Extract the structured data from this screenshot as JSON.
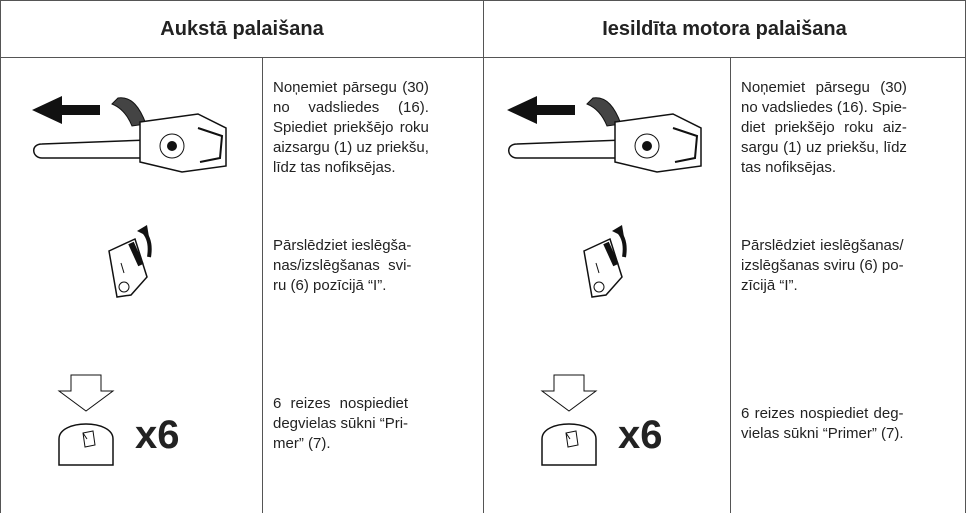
{
  "tables": [
    {
      "header": "Aukstā palaišana",
      "rows": [
        {
          "lines": [
            "Noņemiet pārsegu (30)",
            "no vadsliedes (16).",
            "Spiediet priekšējo roku",
            "aizsargu (1) uz priekšu,",
            "līdz tas nofiksējas."
          ]
        },
        {
          "lines": [
            "Pārslēdziet ieslēgša-",
            "nas/izslēgšanas svi-",
            "ru (6) pozīcijā “I”."
          ]
        },
        {
          "badge": "x6",
          "lines": [
            "6 reizes nospiediet",
            "degvielas sūkni “Pri-",
            "mer” (7)."
          ]
        }
      ]
    },
    {
      "header": "Iesildīta motora palaišana",
      "rows": [
        {
          "lines": [
            "Noņemiet pārsegu (30)",
            "no vadsliedes (16). Spie-",
            "diet priekšējo roku aiz-",
            "sargu (1) uz priekšu, līdz",
            "tas nofiksējas."
          ]
        },
        {
          "lines": [
            "Pārslēdziet ieslēgšanas/",
            "izslēgšanas sviru (6) po-",
            "zīcijā “I”."
          ]
        },
        {
          "badge": "x6",
          "lines": [
            "6 reizes nospiediet deg-",
            "vielas sūkni “Primer” (7)."
          ]
        }
      ]
    }
  ]
}
